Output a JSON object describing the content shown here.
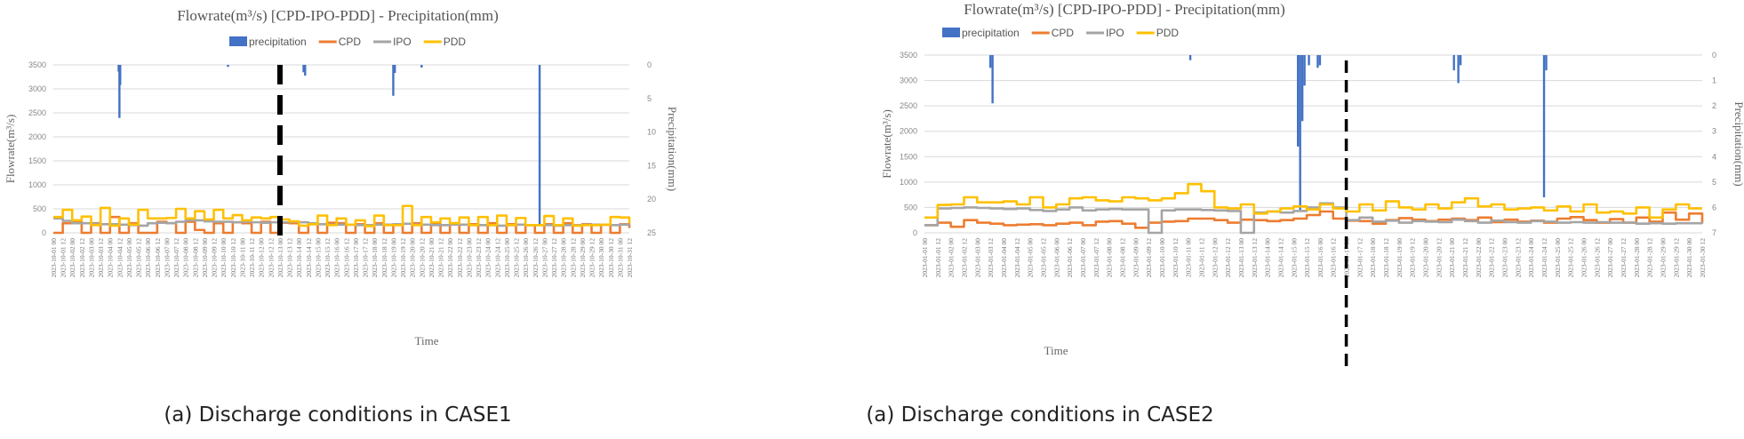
{
  "chart_data": [
    {
      "type": "line",
      "title": "Flowrate(m³/s) [CPD-IPO-PDD]  -  Precipitation(mm)",
      "caption": "(a) Discharge conditions in CASE1",
      "xlabel": "Time",
      "ylabel": "Flowrate(m³/s)",
      "y2label": "Precipitation(mm)",
      "ylim": [
        0,
        3500
      ],
      "yticks": [
        "0",
        "500",
        "1000",
        "1500",
        "2000",
        "2500",
        "3000",
        "3500"
      ],
      "y2lim": [
        0,
        25
      ],
      "y2inverted": true,
      "y2ticks": [
        "0",
        "5",
        "10",
        "15",
        "20",
        "25"
      ],
      "grid": true,
      "legend_position": "top",
      "legend": [
        "precipitation",
        "CPD",
        "IPO",
        "PDD"
      ],
      "x_step_hours": 12,
      "x_max_hours": 732,
      "marker_x_hours": 288,
      "xticks": [
        "2023-10-01 00",
        "2023-10-01 12",
        "2023-10-02 00",
        "2023-10-02 12",
        "2023-10-03 00",
        "2023-10-03 12",
        "2023-10-04 00",
        "2023-10-04 12",
        "2023-10-05 00",
        "2023-10-05 12",
        "2023-10-06 00",
        "2023-10-06 12",
        "2023-10-07 00",
        "2023-10-07 12",
        "2023-10-08 00",
        "2023-10-08 12",
        "2023-10-09 00",
        "2023-10-09 12",
        "2023-10-10 00",
        "2023-10-10 12",
        "2023-10-11 00",
        "2023-10-11 12",
        "2023-10-12 00",
        "2023-10-12 12",
        "2023-10-13 00",
        "2023-10-13 12",
        "2023-10-14 00",
        "2023-10-14 12",
        "2023-10-15 00",
        "2023-10-15 12",
        "2023-10-16 00",
        "2023-10-16 12",
        "2023-10-17 00",
        "2023-10-17 12",
        "2023-10-18 00",
        "2023-10-18 12",
        "2023-10-19 00",
        "2023-10-19 12",
        "2023-10-20 00",
        "2023-10-20 12",
        "2023-10-21 00",
        "2023-10-21 12",
        "2023-10-22 00",
        "2023-10-22 12",
        "2023-10-23 00",
        "2023-10-23 12",
        "2023-10-24 00",
        "2023-10-24 12",
        "2023-10-25 00",
        "2023-10-25 12",
        "2023-10-26 00",
        "2023-10-26 12",
        "2023-10-27 00",
        "2023-10-27 12",
        "2023-10-28 00",
        "2023-10-28 12",
        "2023-10-29 00",
        "2023-10-29 12",
        "2023-10-30 00",
        "2023-10-30 12",
        "2023-10-31 00",
        "2023-10-31 12"
      ],
      "series": [
        {
          "name": "CPD",
          "color": "#ED7D31",
          "values": [
            0,
            200,
            230,
            0,
            200,
            0,
            330,
            0,
            200,
            0,
            0,
            230,
            200,
            0,
            230,
            60,
            0,
            200,
            0,
            220,
            200,
            0,
            230,
            0,
            210,
            200,
            0,
            180,
            0,
            210,
            200,
            0,
            180,
            0,
            200,
            0,
            180,
            0,
            200,
            0,
            180,
            0,
            200,
            0,
            180,
            0,
            200,
            0,
            180,
            0,
            160,
            0,
            180,
            0,
            200,
            0,
            180,
            0,
            170,
            0,
            180,
            100
          ]
        },
        {
          "name": "IPO",
          "color": "#A5A5A5",
          "values": [
            300,
            250,
            200,
            200,
            190,
            180,
            180,
            170,
            160,
            150,
            200,
            210,
            200,
            230,
            260,
            260,
            240,
            230,
            230,
            220,
            230,
            220,
            210,
            220,
            220,
            230,
            220,
            200,
            180,
            170,
            170,
            170,
            160,
            160,
            170,
            170,
            180,
            190,
            170,
            170,
            160,
            160,
            170,
            170,
            160,
            160,
            160,
            150,
            160,
            170,
            160,
            160,
            160,
            150,
            160,
            160,
            170,
            170,
            170,
            160,
            170,
            150
          ]
        },
        {
          "name": "PDD",
          "color": "#FFC000",
          "values": [
            330,
            480,
            260,
            340,
            160,
            520,
            150,
            300,
            170,
            480,
            300,
            300,
            310,
            500,
            300,
            450,
            280,
            480,
            300,
            370,
            260,
            320,
            300,
            330,
            280,
            240,
            150,
            180,
            360,
            160,
            300,
            170,
            260,
            140,
            360,
            160,
            160,
            560,
            160,
            330,
            220,
            300,
            200,
            320,
            160,
            330,
            160,
            360,
            160,
            310,
            160,
            160,
            350,
            160,
            300,
            150,
            160,
            160,
            170,
            330,
            320,
            200
          ]
        }
      ],
      "precipitation": {
        "name": "precipitation",
        "color": "#4472C4",
        "points": [
          [
            83,
            1
          ],
          [
            84,
            7.9
          ],
          [
            85,
            3
          ],
          [
            222,
            0.3
          ],
          [
            318,
            1.1
          ],
          [
            320,
            1.6
          ],
          [
            432,
            4.6
          ],
          [
            434,
            1.2
          ],
          [
            468,
            0.4
          ],
          [
            618,
            24
          ]
        ]
      }
    },
    {
      "type": "line",
      "title": "Flowrate(m³/s) [CPD-IPO-PDD]  -  Precipitation(mm)",
      "caption": "(a) Discharge conditions in CASE2",
      "xlabel": "Time",
      "ylabel": "Flowrate(m³/s)",
      "y2label": "Precipitation(mm)",
      "ylim": [
        0,
        3500
      ],
      "yticks": [
        "0",
        "500",
        "1000",
        "1500",
        "2000",
        "2500",
        "3000",
        "3500"
      ],
      "y2lim": [
        0,
        7
      ],
      "y2inverted": true,
      "y2ticks": [
        "0",
        "1",
        "2",
        "3",
        "4",
        "5",
        "6",
        "7"
      ],
      "grid": true,
      "legend_position": "top",
      "legend": [
        "precipitation",
        "CPD",
        "IPO",
        "PDD"
      ],
      "x_step_hours": 12,
      "x_max_hours": 708,
      "marker_x_hours": 384,
      "xticks": [
        "2023-01-01 00",
        "2023-01-01 12",
        "2023-01-02 00",
        "2023-01-02 12",
        "2023-01-03 00",
        "2023-01-03 12",
        "2023-01-04 00",
        "2023-01-04 12",
        "2023-01-05 00",
        "2023-01-05 12",
        "2023-01-06 00",
        "2023-01-06 12",
        "2023-01-07 00",
        "2023-01-07 12",
        "2023-01-08 00",
        "2023-01-08 12",
        "2023-01-09 00",
        "2023-01-09 12",
        "2023-01-10 00",
        "2023-01-10 12",
        "2023-01-11 00",
        "2023-01-11 12",
        "2023-01-12 00",
        "2023-01-12 12",
        "2023-01-13 00",
        "2023-01-13 12",
        "2023-01-14 00",
        "2023-01-14 12",
        "2023-01-15 00",
        "2023-01-15 12",
        "2023-01-16 00",
        "2023-01-16 12",
        "2023-01-17 00",
        "2023-01-17 12",
        "2023-01-18 00",
        "2023-01-18 12",
        "2023-01-19 00",
        "2023-01-19 12",
        "2023-01-20 00",
        "2023-01-20 12",
        "2023-01-21 00",
        "2023-01-21 12",
        "2023-01-22 00",
        "2023-01-22 12",
        "2023-01-23 00",
        "2023-01-23 12",
        "2023-01-24 00",
        "2023-01-24 12",
        "2023-01-25 00",
        "2023-01-25 12",
        "2023-01-26 00",
        "2023-01-26 12",
        "2023-01-27 00",
        "2023-01-27 12",
        "2023-01-28 00",
        "2023-01-28 12",
        "2023-01-29 00",
        "2023-01-29 12",
        "2023-01-30 00",
        "2023-01-30 12"
      ],
      "series": [
        {
          "name": "CPD",
          "color": "#ED7D31",
          "values": [
            150,
            200,
            120,
            250,
            200,
            180,
            150,
            160,
            170,
            150,
            180,
            200,
            150,
            220,
            230,
            180,
            100,
            200,
            220,
            230,
            280,
            280,
            250,
            200,
            260,
            250,
            230,
            250,
            280,
            350,
            420,
            280,
            240,
            230,
            180,
            250,
            290,
            260,
            230,
            260,
            280,
            250,
            300,
            210,
            260,
            220,
            240,
            200,
            280,
            310,
            250,
            200,
            270,
            200,
            300,
            220,
            400,
            260,
            380,
            200
          ]
        },
        {
          "name": "IPO",
          "color": "#A5A5A5",
          "values": [
            150,
            480,
            490,
            500,
            490,
            480,
            470,
            480,
            450,
            430,
            460,
            500,
            440,
            460,
            470,
            460,
            460,
            0,
            440,
            460,
            460,
            450,
            440,
            430,
            0,
            400,
            420,
            400,
            430,
            500,
            580,
            500,
            250,
            300,
            220,
            240,
            200,
            230,
            220,
            210,
            260,
            230,
            200,
            240,
            210,
            200,
            230,
            220,
            200,
            210,
            200,
            210,
            200,
            200,
            180,
            190,
            180,
            190,
            190,
            180
          ]
        },
        {
          "name": "PDD",
          "color": "#FFC000",
          "values": [
            300,
            550,
            560,
            700,
            600,
            600,
            620,
            560,
            700,
            500,
            560,
            680,
            700,
            640,
            620,
            700,
            680,
            640,
            680,
            780,
            960,
            820,
            500,
            480,
            560,
            380,
            420,
            480,
            520,
            460,
            560,
            480,
            420,
            560,
            440,
            620,
            500,
            460,
            560,
            480,
            600,
            680,
            520,
            560,
            460,
            480,
            500,
            440,
            520,
            420,
            560,
            400,
            420,
            380,
            500,
            300,
            460,
            560,
            480,
            480
          ]
        }
      ],
      "precipitation": {
        "name": "precipitation",
        "color": "#4472C4",
        "points": [
          [
            60,
            0.5
          ],
          [
            62,
            1.9
          ],
          [
            242,
            0.2
          ],
          [
            340,
            3.6
          ],
          [
            342,
            6.1
          ],
          [
            344,
            2.6
          ],
          [
            346,
            1.2
          ],
          [
            350,
            0.4
          ],
          [
            358,
            0.5
          ],
          [
            360,
            0.4
          ],
          [
            482,
            0.6
          ],
          [
            486,
            1.1
          ],
          [
            488,
            0.4
          ],
          [
            564,
            5.6
          ],
          [
            566,
            0.6
          ]
        ]
      }
    }
  ]
}
